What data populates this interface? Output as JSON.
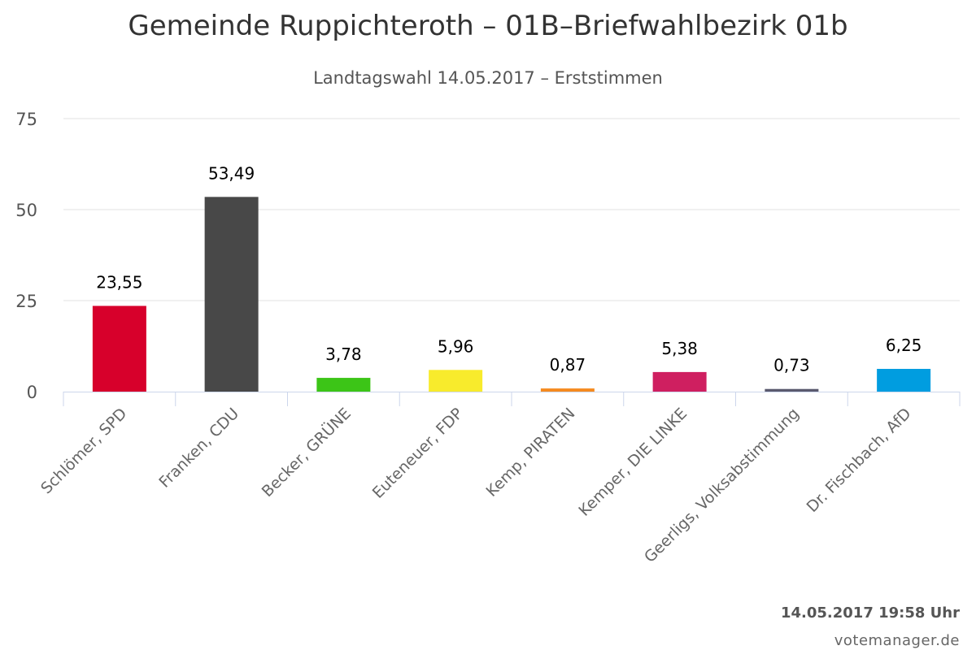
{
  "chart_data": {
    "type": "bar",
    "title": "Gemeinde Ruppichteroth – 01B–Briefwahlbezirk 01b",
    "subtitle": "Landtagswahl 14.05.2017 – Erststimmen",
    "categories": [
      "Schlömer, SPD",
      "Franken, CDU",
      "Becker, GRÜNE",
      "Euteneuer, FDP",
      "Kemp, PIRATEN",
      "Kemper, DIE LINKE",
      "Geerligs, Volksabstimmung",
      "Dr. Fischbach, AfD"
    ],
    "values": [
      23.55,
      53.49,
      3.78,
      5.96,
      0.87,
      5.38,
      0.73,
      6.25
    ],
    "value_labels": [
      "23,55",
      "53,49",
      "3,78",
      "5,96",
      "0,87",
      "5,38",
      "0,73",
      "6,25"
    ],
    "colors": [
      "#d7002b",
      "#484848",
      "#3cc517",
      "#f8eb2c",
      "#f58a1f",
      "#cf1f60",
      "#5a5a6e",
      "#009de0"
    ],
    "ylim": [
      0,
      75
    ],
    "yticks": [
      0,
      25,
      50,
      75
    ],
    "grid": true,
    "xlabel": "",
    "ylabel": ""
  },
  "footer": {
    "timestamp": "14.05.2017 19:58 Uhr",
    "credit": "votemanager.de"
  }
}
